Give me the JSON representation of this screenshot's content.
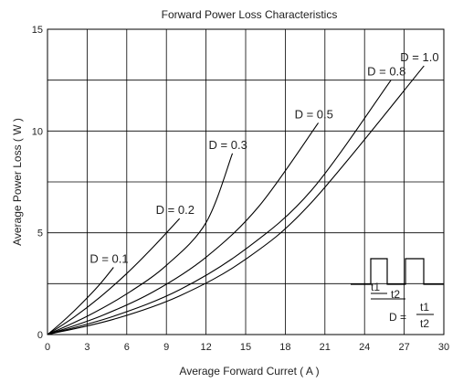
{
  "chart_data": {
    "type": "line",
    "title": "Forward Power Loss Characteristics",
    "xlabel": "Average Forward Curret ( A )",
    "ylabel": "Average Power Loss ( W )",
    "xlim": [
      0,
      30
    ],
    "ylim": [
      0,
      15
    ],
    "x_ticks": [
      0,
      3,
      6,
      9,
      12,
      15,
      18,
      21,
      24,
      27,
      30
    ],
    "y_ticks": [
      0,
      5,
      10,
      15
    ],
    "grid": true,
    "series": [
      {
        "name": "D = 0.1",
        "x": [
          0,
          1,
          2,
          3,
          4,
          5
        ],
        "y": [
          0,
          0.55,
          1.15,
          1.8,
          2.5,
          3.3
        ]
      },
      {
        "name": "D = 0.2",
        "x": [
          0,
          2,
          4,
          6,
          8,
          10
        ],
        "y": [
          0,
          0.85,
          1.85,
          3.0,
          4.3,
          5.7
        ]
      },
      {
        "name": "D = 0.3",
        "x": [
          0,
          3,
          6,
          9,
          12,
          14
        ],
        "y": [
          0,
          0.9,
          2.0,
          3.4,
          5.5,
          8.9
        ]
      },
      {
        "name": "D = 0.5",
        "x": [
          0,
          4,
          8,
          12,
          16,
          20.5
        ],
        "y": [
          0,
          0.9,
          2.1,
          3.8,
          6.3,
          10.4
        ]
      },
      {
        "name": "D = 0.8",
        "x": [
          0,
          5,
          10,
          15,
          20,
          26
        ],
        "y": [
          0,
          0.9,
          2.2,
          4.2,
          7.1,
          12.5
        ]
      },
      {
        "name": "D = 1.0",
        "x": [
          0,
          5,
          10,
          15,
          20,
          28.5
        ],
        "y": [
          0,
          0.75,
          1.9,
          3.7,
          6.5,
          13.2
        ]
      }
    ],
    "inset": {
      "t1_label": "t1",
      "t2_label": "t2",
      "formula_prefix": "D =",
      "numerator": "t1",
      "denominator": "t2"
    }
  }
}
